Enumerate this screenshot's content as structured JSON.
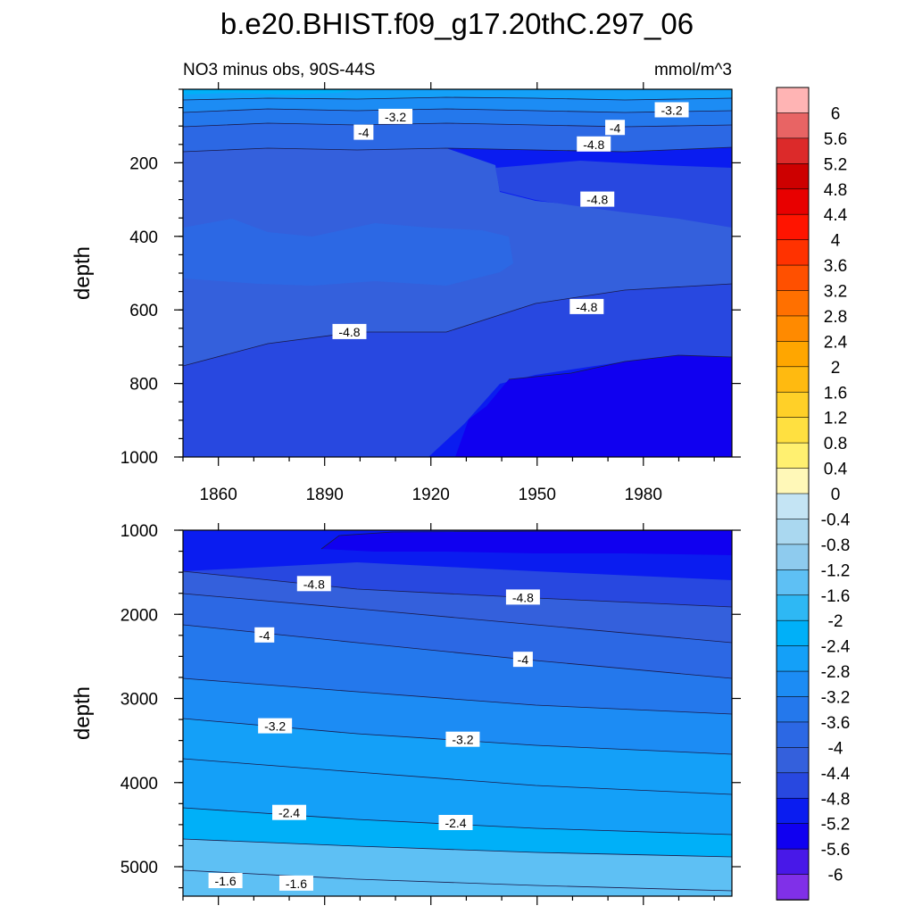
{
  "chart_data": {
    "type": "heatmap",
    "title": "b.e20.BHIST.f09_g17.20thC.297_06",
    "subtitle_left": "NO3 minus obs, 90S-44S",
    "subtitle_right": "mmol/m^3",
    "colorbar": {
      "labels": [
        "6",
        "5.6",
        "5.2",
        "4.8",
        "4.4",
        "4",
        "3.6",
        "3.2",
        "2.8",
        "2.4",
        "2",
        "1.6",
        "1.2",
        "0.8",
        "0.4",
        "0",
        "-0.4",
        "-0.8",
        "-1.2",
        "-1.6",
        "-2",
        "-2.4",
        "-2.8",
        "-3.2",
        "-3.6",
        "-4",
        "-4.4",
        "-4.8",
        "-5.2",
        "-5.6",
        "-6"
      ],
      "colors": [
        "#ffb4b4",
        "#e86464",
        "#dc2a2a",
        "#cd0000",
        "#e80000",
        "#ff1400",
        "#ff3200",
        "#ff5000",
        "#ff7000",
        "#ff8a00",
        "#ffa600",
        "#ffba10",
        "#ffd028",
        "#ffe040",
        "#fff070",
        "#fff8b8",
        "#c4e4f4",
        "#aad8f0",
        "#8ecbee",
        "#5ec0f4",
        "#2eb8f4",
        "#00b0f8",
        "#14a0f8",
        "#1c8cf4",
        "#2478ec",
        "#2c68e4",
        "#3460dc",
        "#2848e0",
        "#0a1cf0",
        "#1000f0",
        "#4818e8",
        "#8030e8"
      ]
    },
    "panels": [
      {
        "id": "upper",
        "xlabel": "",
        "ylabel": "depth",
        "xlim": [
          1850,
          2005
        ],
        "ylim": [
          1000,
          0
        ],
        "xticks": [
          1860,
          1890,
          1920,
          1950,
          1980
        ],
        "yticks": [
          200,
          400,
          600,
          800,
          1000
        ],
        "contour_labels": [
          {
            "text": "-3.2",
            "x": 1910,
            "y": 75
          },
          {
            "text": "-3.2",
            "x": 1988,
            "y": 57
          },
          {
            "text": "-4",
            "x": 1901,
            "y": 118
          },
          {
            "text": "-4",
            "x": 1972,
            "y": 105
          },
          {
            "text": "-4.8",
            "x": 1966,
            "y": 150
          },
          {
            "text": "-4.8",
            "x": 1967,
            "y": 300
          },
          {
            "text": "-4.8",
            "x": 1964,
            "y": 592
          },
          {
            "text": "-4.8",
            "x": 1897,
            "y": 660
          }
        ]
      },
      {
        "id": "lower",
        "xlabel": "",
        "ylabel": "depth",
        "xlim": [
          1850,
          2005
        ],
        "ylim": [
          5350,
          1000
        ],
        "xticks": [
          1860,
          1890,
          1920,
          1950,
          1980
        ],
        "yticks": [
          1000,
          2000,
          3000,
          4000,
          5000
        ],
        "contour_labels": [
          {
            "text": "-4.8",
            "x": 1887,
            "y": 1640
          },
          {
            "text": "-4.8",
            "x": 1946,
            "y": 1800
          },
          {
            "text": "-4",
            "x": 1873,
            "y": 2250
          },
          {
            "text": "-4",
            "x": 1946,
            "y": 2540
          },
          {
            "text": "-3.2",
            "x": 1876,
            "y": 3330
          },
          {
            "text": "-3.2",
            "x": 1929,
            "y": 3490
          },
          {
            "text": "-2.4",
            "x": 1880,
            "y": 4360
          },
          {
            "text": "-2.4",
            "x": 1927,
            "y": 4480
          },
          {
            "text": "-1.6",
            "x": 1862,
            "y": 5170
          },
          {
            "text": "-1.6",
            "x": 1882,
            "y": 5200
          }
        ]
      }
    ]
  }
}
